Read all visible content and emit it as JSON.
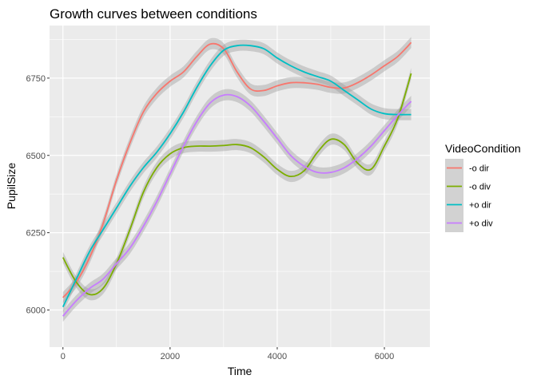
{
  "chart_data": {
    "type": "line",
    "title": "Growth curves between conditions",
    "xlabel": "Time",
    "ylabel": "PupilSize",
    "xlim": [
      -250,
      6850
    ],
    "ylim": [
      5880,
      6920
    ],
    "x_ticks": [
      0,
      2000,
      4000,
      6000
    ],
    "y_ticks": [
      6000,
      6250,
      6500,
      6750
    ],
    "x_tick_labels": [
      "0",
      "2000",
      "4000",
      "6000"
    ],
    "y_tick_labels": [
      "6000",
      "6250",
      "6500",
      "6750"
    ],
    "grid": true,
    "legend_placement": "right",
    "legend_title": "VideoCondition",
    "series": [
      {
        "name": "-o dir",
        "color": "#F8766D",
        "ci_halfwidth": 18,
        "x": [
          0,
          250,
          500,
          750,
          1000,
          1250,
          1500,
          1750,
          2000,
          2250,
          2500,
          2750,
          3000,
          3250,
          3500,
          3750,
          4000,
          4250,
          4500,
          4750,
          5000,
          5250,
          5500,
          5750,
          6000,
          6250,
          6500
        ],
        "y": [
          6040,
          6090,
          6170,
          6280,
          6420,
          6540,
          6640,
          6700,
          6740,
          6770,
          6820,
          6860,
          6845,
          6770,
          6715,
          6710,
          6725,
          6735,
          6735,
          6730,
          6720,
          6718,
          6735,
          6760,
          6790,
          6820,
          6865
        ]
      },
      {
        "name": "-o div",
        "color": "#7CAE00",
        "ci_halfwidth": 18,
        "x": [
          0,
          250,
          500,
          750,
          1000,
          1250,
          1500,
          1750,
          2000,
          2250,
          2500,
          2750,
          3000,
          3250,
          3500,
          3750,
          4000,
          4250,
          4500,
          4750,
          5000,
          5250,
          5500,
          5750,
          6000,
          6250,
          6500
        ],
        "y": [
          6170,
          6090,
          6050,
          6070,
          6150,
          6260,
          6380,
          6460,
          6505,
          6525,
          6530,
          6530,
          6532,
          6535,
          6525,
          6495,
          6455,
          6432,
          6450,
          6510,
          6552,
          6535,
          6475,
          6455,
          6530,
          6620,
          6765
        ]
      },
      {
        "name": "+o dir",
        "color": "#00BFC4",
        "ci_halfwidth": 18,
        "x": [
          0,
          250,
          500,
          750,
          1000,
          1250,
          1500,
          1750,
          2000,
          2250,
          2500,
          2750,
          3000,
          3250,
          3500,
          3750,
          4000,
          4250,
          4500,
          4750,
          5000,
          5250,
          5500,
          5750,
          6000,
          6250,
          6500
        ],
        "y": [
          6010,
          6100,
          6190,
          6260,
          6330,
          6400,
          6460,
          6510,
          6570,
          6640,
          6720,
          6790,
          6840,
          6855,
          6855,
          6845,
          6815,
          6790,
          6770,
          6755,
          6740,
          6710,
          6680,
          6650,
          6635,
          6632,
          6632
        ]
      },
      {
        "name": "+o div",
        "color": "#C77CFF",
        "ci_halfwidth": 18,
        "x": [
          0,
          250,
          500,
          750,
          1000,
          1250,
          1500,
          1750,
          2000,
          2250,
          2500,
          2750,
          3000,
          3250,
          3500,
          3750,
          4000,
          4250,
          4500,
          4750,
          5000,
          5250,
          5500,
          5750,
          6000,
          6250,
          6500
        ],
        "y": [
          5980,
          6030,
          6070,
          6100,
          6150,
          6200,
          6270,
          6350,
          6440,
          6530,
          6610,
          6670,
          6695,
          6690,
          6660,
          6610,
          6555,
          6500,
          6465,
          6445,
          6445,
          6460,
          6490,
          6530,
          6580,
          6630,
          6675
        ]
      }
    ]
  }
}
